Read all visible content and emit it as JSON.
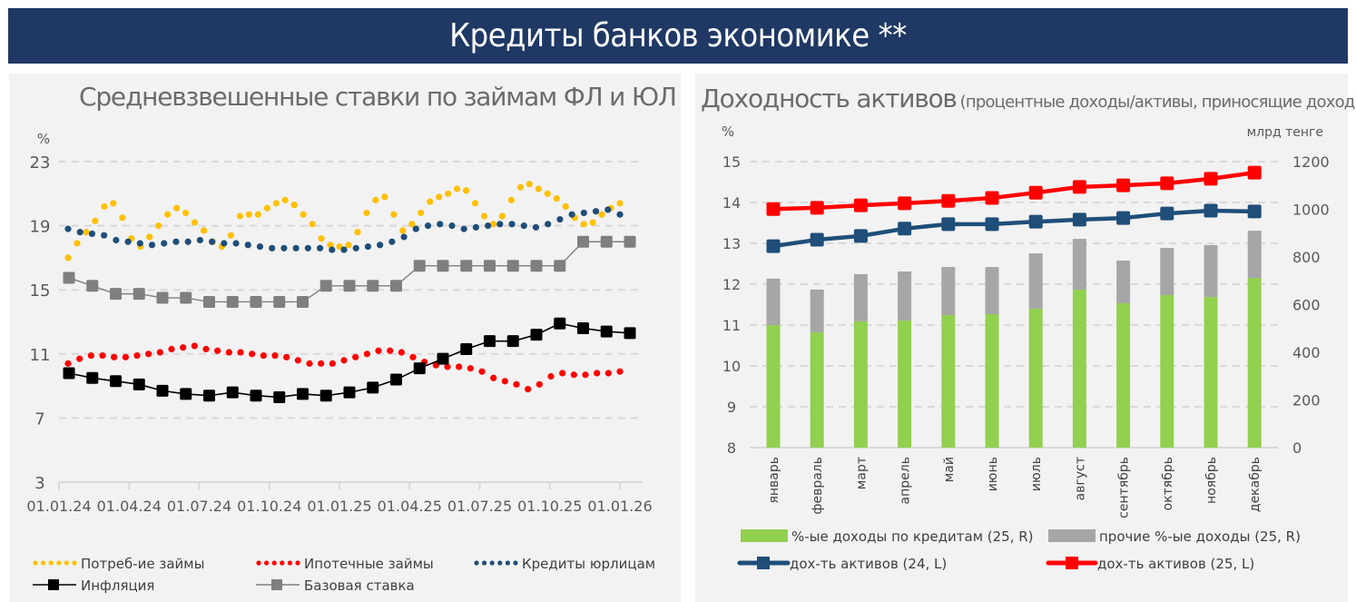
{
  "header": {
    "title": "Кредиты банков экономике **"
  },
  "left_panel": {
    "title": "Средневзвешенные ставки по займам ФЛ и ЮЛ",
    "unit": "%"
  },
  "right_panel": {
    "title_main": "Доходность активов",
    "title_sub": "(процентные доходы/активы, приносящие доход)",
    "unit_left": "%",
    "unit_right": "млрд тенге"
  },
  "colors": {
    "banner": "#1f3864",
    "consumer": "#ffc000",
    "mortgage": "#ff0000",
    "corporate": "#1f4e79",
    "inflation": "#000000",
    "base_rate": "#7f7f7f",
    "green": "#92d050",
    "gray_bar": "#a6a6a6",
    "line24": "#1f4e79",
    "line25": "#ff0000"
  },
  "chart_data": [
    {
      "type": "line",
      "title": "Средневзвешенные ставки по займам ФЛ и ЮЛ",
      "ylabel": "%",
      "ylim": [
        3,
        23
      ],
      "yticks": [
        "3",
        "7",
        "11",
        "15",
        "19",
        "23"
      ],
      "xticks": [
        "01.01.24",
        "01.04.24",
        "01.07.24",
        "01.10.24",
        "01.01.25",
        "01.04.25",
        "01.07.25",
        "01.10.25",
        "01.01.26"
      ],
      "grid": true,
      "legend_position": "bottom",
      "x_months": 24,
      "series": [
        {
          "name": "Потреб-ие займы",
          "style": "dotted",
          "color_key": "consumer",
          "values": [
            17.0,
            17.9,
            18.6,
            19.3,
            20.2,
            20.4,
            19.5,
            18.2,
            17.7,
            18.3,
            19.0,
            19.7,
            20.1,
            19.8,
            19.2,
            18.7,
            18.0,
            17.7,
            18.4,
            19.6,
            19.7,
            19.7,
            20.1,
            20.4,
            20.6,
            20.3,
            19.7,
            19.1,
            18.2,
            17.8,
            17.7,
            17.8,
            18.6,
            19.8,
            20.6,
            20.8,
            19.7,
            18.7,
            19.1,
            19.8,
            20.5,
            20.8,
            21.0,
            21.3,
            21.2,
            20.4,
            19.6,
            19.1,
            19.6,
            20.6,
            21.4,
            21.6,
            21.3,
            21.0,
            20.7,
            20.2,
            19.5,
            19.1,
            19.2,
            19.7,
            20.1,
            20.4
          ],
          "note": "dense dotted curve sampled roughly twice per month"
        },
        {
          "name": "Ипотечные займы",
          "style": "dotted",
          "color_key": "mortgage",
          "values": [
            10.4,
            10.7,
            10.9,
            10.9,
            10.8,
            10.8,
            10.9,
            11.0,
            11.1,
            11.3,
            11.4,
            11.5,
            11.3,
            11.2,
            11.1,
            11.1,
            11.0,
            10.9,
            10.9,
            10.8,
            10.6,
            10.4,
            10.4,
            10.4,
            10.6,
            10.8,
            11.0,
            11.2,
            11.2,
            11.1,
            10.8,
            10.5,
            10.3,
            10.2,
            10.2,
            10.1,
            9.9,
            9.5,
            9.3,
            9.1,
            8.8,
            9.1,
            9.6,
            9.8,
            9.7,
            9.7,
            9.8,
            9.8,
            9.9
          ],
          "note": "dotted curve"
        },
        {
          "name": "Кредиты юрлицам",
          "style": "dotted",
          "color_key": "corporate",
          "values": [
            18.8,
            18.6,
            18.5,
            18.4,
            18.1,
            18.0,
            17.9,
            17.8,
            17.9,
            18.0,
            18.0,
            18.1,
            18.0,
            17.9,
            17.9,
            17.8,
            17.7,
            17.6,
            17.6,
            17.6,
            17.6,
            17.6,
            17.5,
            17.5,
            17.6,
            17.7,
            17.8,
            18.0,
            18.3,
            18.8,
            19.0,
            19.1,
            19.0,
            18.8,
            18.9,
            19.0,
            19.1,
            19.1,
            19.0,
            18.9,
            19.1,
            19.4,
            19.7,
            19.8,
            19.9,
            20.0,
            19.7
          ],
          "note": "dotted curve"
        },
        {
          "name": "Инфляция",
          "style": "line-square",
          "color_key": "inflation",
          "values": [
            9.8,
            9.5,
            9.3,
            9.1,
            8.7,
            8.5,
            8.4,
            8.6,
            8.4,
            8.3,
            8.5,
            8.4,
            8.6,
            8.9,
            9.4,
            10.1,
            10.7,
            11.3,
            11.8,
            11.8,
            12.2,
            12.9,
            12.6,
            12.4,
            12.3
          ]
        },
        {
          "name": "Базовая ставка",
          "style": "line-square",
          "color_key": "base_rate",
          "values": [
            15.75,
            15.25,
            14.75,
            14.75,
            14.5,
            14.5,
            14.25,
            14.25,
            14.25,
            14.25,
            14.25,
            15.25,
            15.25,
            15.25,
            15.25,
            16.5,
            16.5,
            16.5,
            16.5,
            16.5,
            16.5,
            16.5,
            18.0,
            18.0,
            18.0
          ]
        }
      ]
    },
    {
      "type": "bar",
      "stacked": true,
      "title": "Доходность активов (процентные доходы/активы, приносящие доход)",
      "categories": [
        "январь",
        "февраль",
        "март",
        "апрель",
        "май",
        "июнь",
        "июль",
        "август",
        "сентябрь",
        "октябрь",
        "ноябрь",
        "декабрь"
      ],
      "ylabel_left": "%",
      "ylabel_right": "млрд тенге",
      "ylim_left": [
        8,
        15
      ],
      "ylim_right": [
        0,
        1200
      ],
      "yticks_left": [
        "8",
        "9",
        "10",
        "11",
        "12",
        "13",
        "14",
        "15"
      ],
      "yticks_right": [
        "0",
        "200",
        "400",
        "600",
        "800",
        "1000",
        "1200"
      ],
      "grid": true,
      "legend_position": "bottom",
      "series": [
        {
          "name": "%-ые доходы по кредитам (25, R)",
          "kind": "bar",
          "axis": "right",
          "color_key": "green",
          "values": [
            514,
            484,
            530,
            533,
            556,
            560,
            583,
            663,
            606,
            640,
            632,
            712
          ]
        },
        {
          "name": "прочие %-ые доходы (25, R)",
          "kind": "bar",
          "axis": "right",
          "color_key": "gray_bar",
          "values": [
            195,
            179,
            198,
            206,
            202,
            198,
            232,
            213,
            179,
            198,
            218,
            198
          ]
        },
        {
          "name": "дох-ть активов (24, L)",
          "kind": "line",
          "axis": "left",
          "color_key": "line24",
          "values": [
            12.93,
            13.09,
            13.18,
            13.36,
            13.47,
            13.47,
            13.53,
            13.58,
            13.62,
            13.73,
            13.8,
            13.78
          ]
        },
        {
          "name": "дох-ть активов (25, L)",
          "kind": "line",
          "axis": "left",
          "color_key": "line25",
          "values": [
            13.84,
            13.87,
            13.93,
            13.98,
            14.04,
            14.11,
            14.24,
            14.38,
            14.42,
            14.47,
            14.58,
            14.73
          ]
        }
      ]
    }
  ]
}
